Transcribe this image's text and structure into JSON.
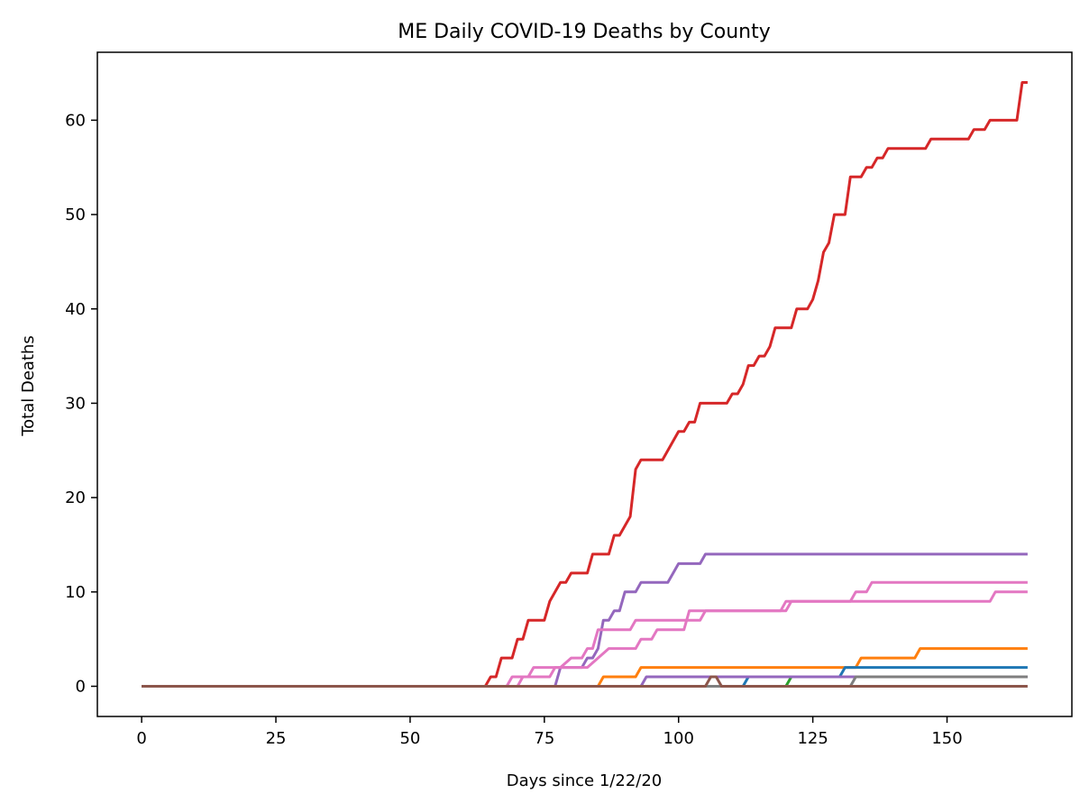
{
  "chart_data": {
    "type": "line",
    "title": "ME Daily COVID-19 Deaths by County",
    "xlabel": "Days since 1/22/20",
    "ylabel": "Total Deaths",
    "xlim": [
      -8.25,
      173.25
    ],
    "ylim": [
      -3.2,
      67.2
    ],
    "xticks": [
      0,
      25,
      50,
      75,
      100,
      125,
      150
    ],
    "yticks": [
      0,
      10,
      20,
      30,
      40,
      50,
      60
    ],
    "grid": false,
    "legend": "none",
    "series": [
      {
        "color": "#d62728",
        "points": [
          [
            0,
            0
          ],
          [
            64,
            0
          ],
          [
            65,
            1
          ],
          [
            66,
            1
          ],
          [
            67,
            3
          ],
          [
            69,
            3
          ],
          [
            70,
            5
          ],
          [
            71,
            5
          ],
          [
            72,
            7
          ],
          [
            75,
            7
          ],
          [
            76,
            9
          ],
          [
            78,
            11
          ],
          [
            79,
            11
          ],
          [
            80,
            12
          ],
          [
            83,
            12
          ],
          [
            84,
            14
          ],
          [
            87,
            14
          ],
          [
            88,
            16
          ],
          [
            89,
            16
          ],
          [
            91,
            18
          ],
          [
            92,
            23
          ],
          [
            93,
            24
          ],
          [
            97,
            24
          ],
          [
            100,
            27
          ],
          [
            101,
            27
          ],
          [
            102,
            28
          ],
          [
            103,
            28
          ],
          [
            104,
            30
          ],
          [
            109,
            30
          ],
          [
            110,
            31
          ],
          [
            111,
            31
          ],
          [
            112,
            32
          ],
          [
            113,
            34
          ],
          [
            114,
            34
          ],
          [
            115,
            35
          ],
          [
            116,
            35
          ],
          [
            117,
            36
          ],
          [
            118,
            38
          ],
          [
            121,
            38
          ],
          [
            122,
            40
          ],
          [
            124,
            40
          ],
          [
            125,
            41
          ],
          [
            126,
            43
          ],
          [
            127,
            46
          ],
          [
            128,
            47
          ],
          [
            129,
            50
          ],
          [
            131,
            50
          ],
          [
            132,
            54
          ],
          [
            134,
            54
          ],
          [
            135,
            55
          ],
          [
            136,
            55
          ],
          [
            137,
            56
          ],
          [
            138,
            56
          ],
          [
            139,
            57
          ],
          [
            146,
            57
          ],
          [
            147,
            58
          ],
          [
            154,
            58
          ],
          [
            155,
            59
          ],
          [
            157,
            59
          ],
          [
            158,
            60
          ],
          [
            163,
            60
          ],
          [
            164,
            64
          ],
          [
            165,
            64
          ]
        ]
      },
      {
        "color": "#9467bd",
        "points": [
          [
            0,
            0
          ],
          [
            77,
            0
          ],
          [
            78,
            2
          ],
          [
            82,
            2
          ],
          [
            83,
            3
          ],
          [
            84,
            3
          ],
          [
            85,
            4
          ],
          [
            86,
            7
          ],
          [
            87,
            7
          ],
          [
            88,
            8
          ],
          [
            89,
            8
          ],
          [
            90,
            10
          ],
          [
            92,
            10
          ],
          [
            93,
            11
          ],
          [
            98,
            11
          ],
          [
            100,
            13
          ],
          [
            104,
            13
          ],
          [
            105,
            14
          ],
          [
            165,
            14
          ]
        ]
      },
      {
        "color": "#e377c2",
        "points": [
          [
            0,
            0
          ],
          [
            68,
            0
          ],
          [
            69,
            1
          ],
          [
            72,
            1
          ],
          [
            73,
            2
          ],
          [
            77,
            2
          ],
          [
            78,
            2
          ],
          [
            80,
            3
          ],
          [
            82,
            3
          ],
          [
            83,
            4
          ],
          [
            84,
            4
          ],
          [
            85,
            6
          ],
          [
            91,
            6
          ],
          [
            92,
            7
          ],
          [
            104,
            7
          ],
          [
            105,
            8
          ],
          [
            120,
            8
          ],
          [
            121,
            9
          ],
          [
            132,
            9
          ],
          [
            133,
            10
          ],
          [
            135,
            10
          ],
          [
            136,
            11
          ],
          [
            165,
            11
          ]
        ]
      },
      {
        "color": "#e377c2",
        "points": [
          [
            0,
            0
          ],
          [
            70,
            0
          ],
          [
            71,
            1
          ],
          [
            76,
            1
          ],
          [
            77,
            2
          ],
          [
            80,
            2
          ],
          [
            83,
            2
          ],
          [
            85,
            3
          ],
          [
            87,
            4
          ],
          [
            92,
            4
          ],
          [
            93,
            5
          ],
          [
            95,
            5
          ],
          [
            96,
            6
          ],
          [
            101,
            6
          ],
          [
            102,
            8
          ],
          [
            119,
            8
          ],
          [
            120,
            9
          ],
          [
            158,
            9
          ],
          [
            159,
            10
          ],
          [
            165,
            10
          ]
        ]
      },
      {
        "color": "#ff7f0e",
        "points": [
          [
            0,
            0
          ],
          [
            85,
            0
          ],
          [
            86,
            1
          ],
          [
            92,
            1
          ],
          [
            93,
            2
          ],
          [
            133,
            2
          ],
          [
            134,
            3
          ],
          [
            144,
            3
          ],
          [
            145,
            4
          ],
          [
            165,
            4
          ]
        ]
      },
      {
        "color": "#1f77b4",
        "points": [
          [
            0,
            0
          ],
          [
            112,
            0
          ],
          [
            113,
            1
          ],
          [
            130,
            1
          ],
          [
            131,
            2
          ],
          [
            165,
            2
          ]
        ]
      },
      {
        "color": "#2ca02c",
        "points": [
          [
            0,
            0
          ],
          [
            120,
            0
          ],
          [
            121,
            1
          ],
          [
            165,
            1
          ]
        ]
      },
      {
        "color": "#9467bd",
        "points": [
          [
            0,
            0
          ],
          [
            93,
            0
          ],
          [
            94,
            1
          ],
          [
            165,
            1
          ]
        ]
      },
      {
        "color": "#7f7f7f",
        "points": [
          [
            0,
            0
          ],
          [
            132,
            0
          ],
          [
            133,
            1
          ],
          [
            165,
            1
          ]
        ]
      },
      {
        "color": "#8c564b",
        "points": [
          [
            0,
            0
          ],
          [
            105,
            0
          ],
          [
            106,
            1
          ],
          [
            107,
            1
          ],
          [
            108,
            0
          ],
          [
            165,
            0
          ]
        ]
      }
    ]
  }
}
